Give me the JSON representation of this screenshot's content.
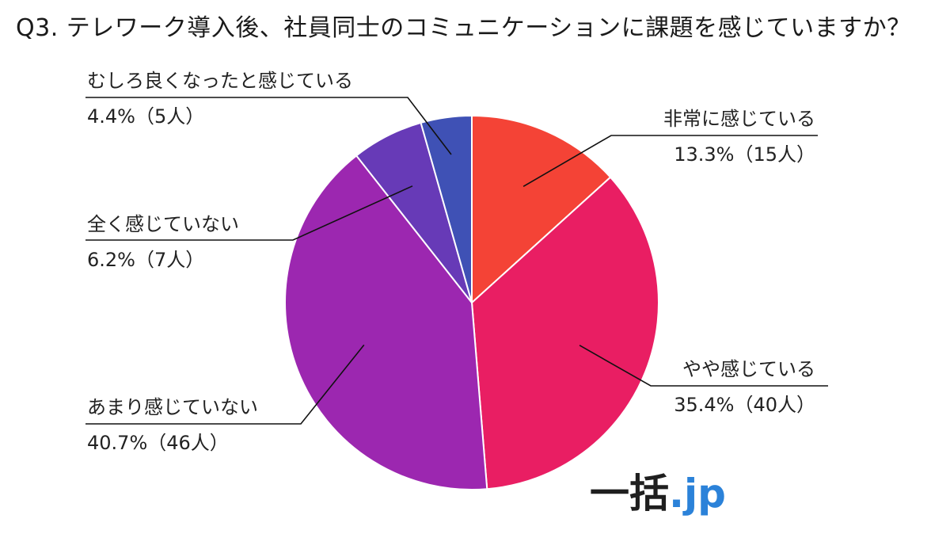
{
  "chart_data": {
    "type": "pie",
    "title": "Q3. テレワーク導入後、社員同士のコミュニケーションに課題を感じていますか？",
    "slices": [
      {
        "label": "非常に感じている",
        "percent": 13.3,
        "count": 15,
        "value_text": "13.3%（15人）",
        "color": "#f44336"
      },
      {
        "label": "やや感じている",
        "percent": 35.4,
        "count": 40,
        "value_text": "35.4%（40人）",
        "color": "#e91e63"
      },
      {
        "label": "あまり感じていない",
        "percent": 40.7,
        "count": 46,
        "value_text": "40.7%（46人）",
        "color": "#9c27b0"
      },
      {
        "label": "全く感じていない",
        "percent": 6.2,
        "count": 7,
        "value_text": "6.2%（7人）",
        "color": "#673ab7"
      },
      {
        "label": "むしろ良くなったと感じている",
        "percent": 4.4,
        "count": 5,
        "value_text": "4.4%（5人）",
        "color": "#3f51b5"
      }
    ]
  },
  "logo": {
    "kanji": "一括",
    "dot": ".",
    "tld": "jp"
  }
}
